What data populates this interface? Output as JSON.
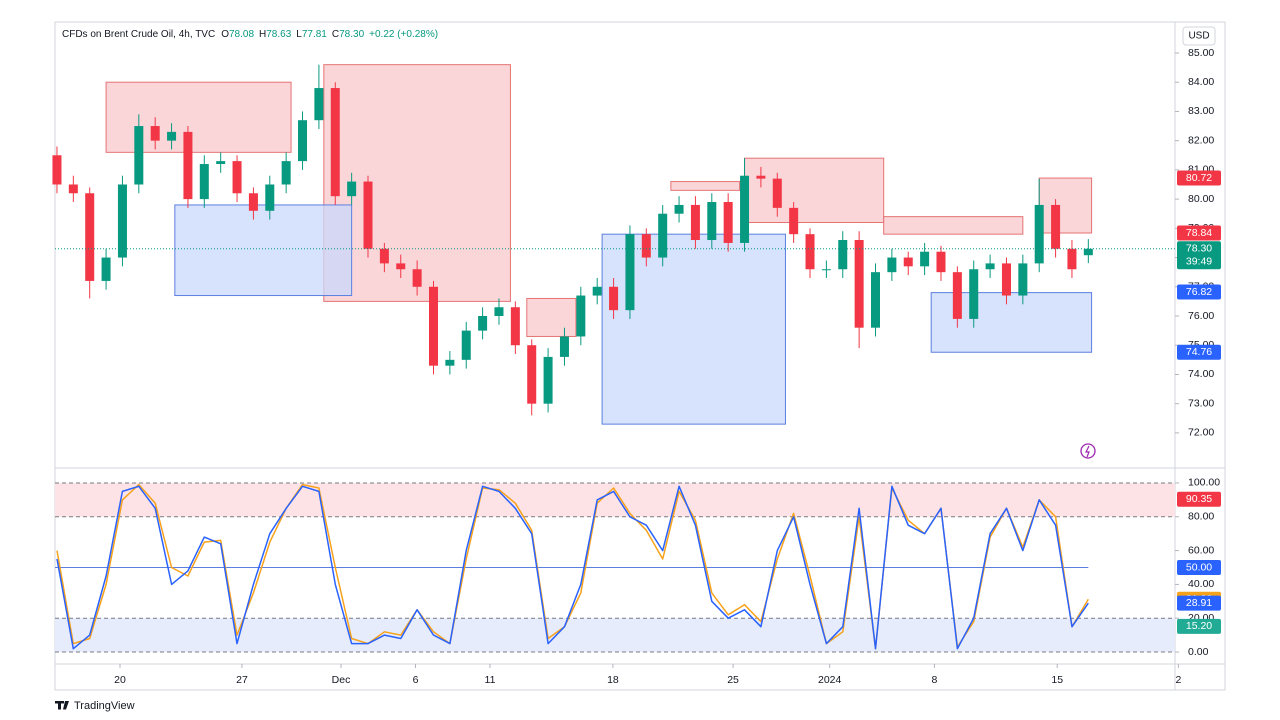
{
  "header": {
    "symbol": "CFDs on Brent Crude Oil, 4h, TVC",
    "ohlc": [
      {
        "label": "O",
        "value": "78.08"
      },
      {
        "label": "H",
        "value": "78.63"
      },
      {
        "label": "L",
        "value": "77.81"
      },
      {
        "label": "C",
        "value": "78.30"
      }
    ],
    "change": "+0.22 (+0.28%)"
  },
  "currency": "USD",
  "brand": "TradingView",
  "chart_data": [
    {
      "type": "candlestick",
      "up_color": "#089981",
      "down_color": "#f23645",
      "xlim": [
        -0.12,
        68.6
      ],
      "ylim": [
        70.97,
        86.06
      ],
      "yticks": [
        {
          "value": 72,
          "label": "72.00"
        },
        {
          "value": 73,
          "label": "73.00"
        },
        {
          "value": 74,
          "label": "74.00"
        },
        {
          "value": 75,
          "label": "75.00"
        },
        {
          "value": 76,
          "label": "76.00"
        },
        {
          "value": 77,
          "label": "77.00"
        },
        {
          "value": 78,
          "label": "78.00"
        },
        {
          "value": 79,
          "label": "79.00"
        },
        {
          "value": 80,
          "label": "80.00"
        },
        {
          "value": 81,
          "label": "81.00"
        },
        {
          "value": 82,
          "label": "82.00"
        },
        {
          "value": 83,
          "label": "83.00"
        },
        {
          "value": 84,
          "label": "84.00"
        },
        {
          "value": 85,
          "label": "85.00"
        }
      ],
      "open": [
        81.5,
        80.5,
        80.2,
        77.2,
        78.0,
        80.5,
        82.5,
        82.0,
        82.3,
        80.0,
        81.2,
        81.3,
        80.2,
        79.6,
        80.5,
        81.3,
        82.7,
        83.8,
        80.1,
        80.6,
        78.3,
        77.8,
        77.6,
        77.0,
        74.3,
        74.5,
        75.5,
        76.0,
        76.3,
        75.0,
        73.0,
        74.6,
        75.3,
        76.7,
        77.0,
        76.2,
        78.8,
        78.0,
        79.5,
        79.8,
        78.6,
        79.9,
        78.5,
        80.8,
        80.7,
        79.7,
        78.8,
        77.6,
        77.6,
        78.6,
        75.6,
        77.5,
        78.0,
        77.7,
        78.2,
        77.5,
        75.9,
        77.6,
        77.8,
        76.7,
        77.8,
        79.8,
        78.3,
        78.08
      ],
      "high": [
        81.8,
        80.8,
        80.4,
        78.3,
        80.8,
        82.9,
        82.8,
        82.6,
        82.5,
        81.5,
        81.6,
        81.5,
        80.4,
        80.8,
        81.6,
        83.0,
        84.6,
        84.0,
        80.9,
        80.8,
        78.5,
        78.1,
        77.9,
        77.2,
        74.8,
        75.8,
        76.3,
        76.6,
        76.5,
        75.2,
        74.9,
        75.6,
        77.0,
        77.3,
        77.3,
        79.1,
        79.0,
        79.8,
        80.1,
        80.1,
        80.2,
        80.2,
        81.4,
        81.1,
        80.9,
        79.9,
        79.0,
        77.9,
        78.9,
        78.9,
        77.8,
        78.3,
        78.2,
        78.5,
        78.4,
        77.7,
        77.9,
        78.1,
        78.0,
        78.1,
        80.7,
        80.0,
        78.6,
        78.63
      ],
      "low": [
        80.2,
        79.9,
        76.6,
        76.9,
        77.7,
        80.2,
        81.7,
        81.7,
        79.7,
        79.7,
        80.9,
        79.9,
        79.3,
        79.3,
        80.2,
        81.0,
        82.4,
        79.8,
        79.8,
        78.0,
        77.5,
        77.3,
        76.7,
        74.0,
        74.0,
        74.2,
        75.2,
        75.7,
        74.7,
        72.6,
        72.7,
        74.3,
        75.0,
        76.4,
        75.9,
        75.9,
        77.7,
        77.7,
        79.2,
        78.3,
        78.3,
        78.2,
        78.2,
        80.4,
        79.4,
        78.5,
        77.3,
        77.3,
        77.3,
        74.9,
        75.3,
        77.2,
        77.4,
        77.4,
        77.2,
        75.6,
        75.6,
        77.3,
        76.4,
        76.4,
        77.5,
        78.0,
        77.3,
        77.81
      ],
      "close": [
        80.5,
        80.2,
        77.2,
        78.0,
        80.5,
        82.5,
        82.0,
        82.3,
        80.0,
        81.2,
        81.3,
        80.2,
        79.6,
        80.5,
        81.3,
        82.7,
        83.8,
        80.1,
        80.6,
        78.3,
        77.8,
        77.6,
        77.0,
        74.3,
        74.5,
        75.5,
        76.0,
        76.3,
        75.0,
        73.0,
        74.6,
        75.3,
        76.7,
        77.0,
        76.2,
        78.8,
        78.0,
        79.5,
        79.8,
        78.6,
        79.9,
        78.5,
        80.8,
        80.7,
        79.7,
        78.8,
        77.6,
        77.6,
        78.6,
        75.6,
        77.5,
        78.0,
        77.7,
        78.2,
        77.5,
        75.9,
        77.6,
        77.8,
        76.7,
        77.8,
        79.8,
        78.3,
        77.6,
        78.3
      ],
      "zones": [
        {
          "from": 3,
          "to": 14.3,
          "top": 84.0,
          "bottom": 81.6,
          "color": "#f8c8cc",
          "line_color": "#e57373"
        },
        {
          "from": 16.3,
          "to": 27.7,
          "top": 84.6,
          "bottom": 76.5,
          "color": "#f8c8cc",
          "line_color": "#e57373"
        },
        {
          "from": 28.7,
          "to": 31.7,
          "top": 76.6,
          "bottom": 75.3,
          "color": "#f8c8cc",
          "line_color": "#e57373"
        },
        {
          "from": 37.5,
          "to": 41.7,
          "top": 80.6,
          "bottom": 80.3,
          "color": "#f8c8cc",
          "line_color": "#e57373"
        },
        {
          "from": 42,
          "to": 50.5,
          "top": 81.4,
          "bottom": 79.2,
          "color": "#f8c8cc",
          "line_color": "#e57373"
        },
        {
          "from": 50.5,
          "to": 59,
          "top": 79.4,
          "bottom": 78.8,
          "color": "#f8c8cc",
          "line_color": "#e57373"
        },
        {
          "from": 60,
          "to": 63.2,
          "top": 80.72,
          "bottom": 78.84,
          "color": "#f8c8cc",
          "line_color": "#e57373"
        },
        {
          "from": 7.2,
          "to": 18,
          "top": 79.8,
          "bottom": 76.7,
          "color": "#c9d8fb",
          "line_color": "#5b7fe0"
        },
        {
          "from": 33.3,
          "to": 44.5,
          "top": 78.8,
          "bottom": 72.3,
          "color": "#c9d8fb",
          "line_color": "#5b7fe0"
        },
        {
          "from": 53.4,
          "to": 63.2,
          "top": 76.8,
          "bottom": 74.76,
          "color": "#c9d8fb",
          "line_color": "#5b7fe0"
        }
      ],
      "price_labels": [
        {
          "value": 80.72,
          "color": "#f23645"
        },
        {
          "value": 78.84,
          "color": "#f23645"
        },
        {
          "value": 78.3,
          "label": "78.30",
          "color": "#089981",
          "countdown": "39:49"
        },
        {
          "value": 76.82,
          "color": "#2962ff"
        },
        {
          "value": 74.76,
          "color": "#2962ff"
        }
      ]
    },
    {
      "type": "line",
      "xlim": [
        -0.12,
        68.6
      ],
      "xticks": [
        {
          "value": 3.85,
          "label": "20"
        },
        {
          "value": 11.3,
          "label": "27"
        },
        {
          "value": 17.35,
          "label": "Dec"
        },
        {
          "value": 21.9,
          "label": "6"
        },
        {
          "value": 26.45,
          "label": "11"
        },
        {
          "value": 33.96,
          "label": "18"
        },
        {
          "value": 41.3,
          "label": "25"
        },
        {
          "value": 47.2,
          "label": "2024"
        },
        {
          "value": 53.6,
          "label": "8"
        },
        {
          "value": 61.1,
          "label": "15"
        },
        {
          "value": 68.5,
          "label": "2"
        }
      ],
      "ylim": [
        -4.7,
        104.7
      ],
      "yticks": [
        {
          "value": 0,
          "label": "0.00"
        },
        {
          "value": 20,
          "label": "20.00"
        },
        {
          "value": 40,
          "label": "40.00"
        },
        {
          "value": 60,
          "label": "60.00"
        },
        {
          "value": 80,
          "label": "80.00"
        },
        {
          "value": 100,
          "label": "100.00"
        }
      ],
      "bands": [
        {
          "from": 80,
          "to": 100,
          "color": "#fde3e5"
        },
        {
          "from": 0,
          "to": 20,
          "color": "#e6ecfb"
        }
      ],
      "hlines": [
        {
          "value": 50,
          "color": "#5b7fe0"
        }
      ],
      "series": [
        {
          "color": "#2962ff",
          "values": [
            55,
            2,
            10,
            45,
            95,
            98,
            85,
            40,
            48,
            68,
            64,
            5,
            40,
            70,
            85,
            98,
            95,
            40,
            5,
            5,
            10,
            8,
            25,
            10,
            5,
            60,
            98,
            95,
            85,
            70,
            5,
            15,
            40,
            90,
            95,
            80,
            75,
            60,
            98,
            75,
            30,
            20,
            25,
            15,
            60,
            80,
            40,
            5,
            15,
            85,
            2,
            98,
            75,
            70,
            85,
            2,
            20,
            70,
            85,
            60,
            90,
            75,
            15,
            28.91
          ]
        },
        {
          "color": "#f7a21b",
          "values": [
            60,
            5,
            8,
            40,
            90,
            99,
            88,
            50,
            45,
            65,
            66,
            10,
            35,
            65,
            85,
            99,
            97,
            50,
            8,
            5,
            12,
            10,
            25,
            12,
            5,
            55,
            97,
            96,
            88,
            72,
            8,
            15,
            35,
            88,
            97,
            82,
            72,
            55,
            95,
            78,
            35,
            22,
            28,
            18,
            55,
            82,
            45,
            5,
            12,
            80,
            2,
            97,
            78,
            70,
            85,
            3,
            18,
            68,
            85,
            62,
            90,
            80,
            15,
            31.26
          ]
        }
      ],
      "price_labels": [
        {
          "value": 90.35,
          "color": "#f23645"
        },
        {
          "value": 50,
          "label": "50.00",
          "color": "#2962ff"
        },
        {
          "value": 31.26,
          "color": "#f7a21b"
        },
        {
          "value": 28.91,
          "color": "#2962ff"
        },
        {
          "value": 15.2,
          "label": "15.20",
          "color": "#22ab94"
        }
      ]
    }
  ]
}
